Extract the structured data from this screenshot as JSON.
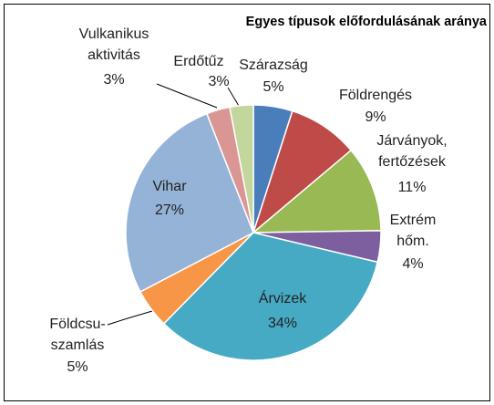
{
  "chart_data": {
    "type": "pie",
    "title": "Egyes típusok előfordulásának aránya",
    "categories": [
      "Szárazság",
      "Földrengés",
      "Járványok,\nfertőzések",
      "Extrém\nhőm.",
      "Árvizek",
      "Földcsu-\nszamlás",
      "Vihar",
      "Vulkanikus\naktivitás",
      "Erdőtűz"
    ],
    "values": [
      5,
      9,
      11,
      4,
      34,
      5,
      27,
      3,
      3
    ],
    "value_labels": [
      "5%",
      "9%",
      "11%",
      "4%",
      "34%",
      "5%",
      "27%",
      "3%",
      "3%"
    ],
    "colors": [
      "#4a7ebb",
      "#be4b48",
      "#98b954",
      "#7d5fa0",
      "#46aac5",
      "#f79646",
      "#95b3d7",
      "#d99694",
      "#c3d69b"
    ]
  }
}
